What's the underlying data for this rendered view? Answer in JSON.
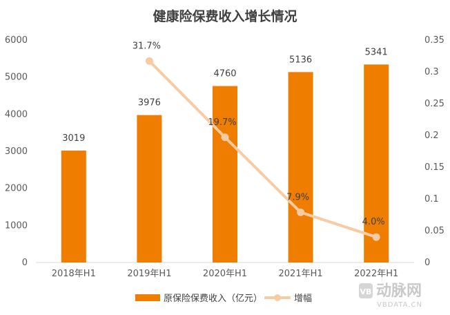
{
  "chart_data": {
    "type": "bar",
    "title": "健康险保费收入增长情况",
    "categories": [
      "2018年H1",
      "2019年H1",
      "2020年H1",
      "2021年H1",
      "2022年H1"
    ],
    "series": [
      {
        "name": "原保险保费收入（亿元）",
        "type": "bar",
        "axis": "left",
        "values": [
          3019,
          3976,
          4760,
          5136,
          5341
        ],
        "data_labels": [
          "3019",
          "3976",
          "4760",
          "5136",
          "5341"
        ],
        "color": "#EE7D00"
      },
      {
        "name": "增幅",
        "type": "line",
        "axis": "right",
        "values": [
          null,
          0.317,
          0.197,
          0.079,
          0.04
        ],
        "data_labels": [
          "",
          "31.7%",
          "19.7%",
          "7.9%",
          "4.0%"
        ],
        "color": "#F8CBA2"
      }
    ],
    "y_left": {
      "ylim": [
        0,
        6000
      ],
      "ticks": [
        0,
        1000,
        2000,
        3000,
        4000,
        5000,
        6000
      ],
      "tick_labels": [
        "0",
        "1000",
        "2000",
        "3000",
        "4000",
        "5000",
        "6000"
      ]
    },
    "y_right": {
      "ylim": [
        0,
        0.35
      ],
      "ticks": [
        0,
        0.05,
        0.1,
        0.15,
        0.2,
        0.25,
        0.3,
        0.35
      ],
      "tick_labels": [
        "0",
        "0.05",
        "0.1",
        "0.15",
        "0.2",
        "0.25",
        "0.3",
        "0.35"
      ]
    },
    "grid": false,
    "legend_position": "bottom"
  },
  "watermark": {
    "logo_text": "VB",
    "name": "动脉网",
    "sub": "VBDATA.CN"
  }
}
